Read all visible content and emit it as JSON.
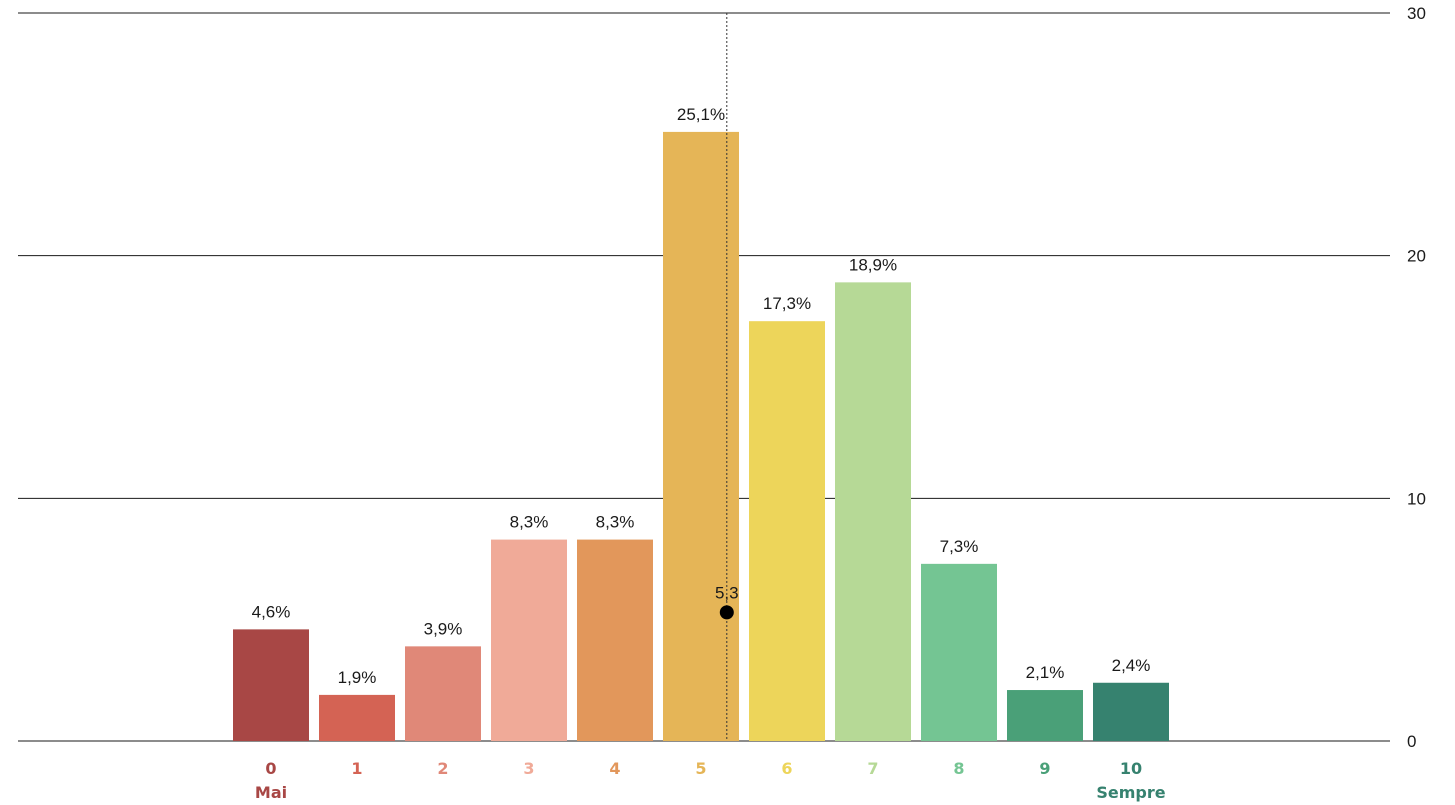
{
  "chart_data": {
    "type": "bar",
    "categories": [
      "0",
      "1",
      "2",
      "3",
      "4",
      "5",
      "6",
      "7",
      "8",
      "9",
      "10"
    ],
    "values": [
      4.6,
      1.9,
      3.9,
      8.3,
      8.3,
      25.1,
      17.3,
      18.9,
      7.3,
      2.1,
      2.4
    ],
    "value_labels": [
      "4,6%",
      "1,9%",
      "3,9%",
      "8,3%",
      "8,3%",
      "25,1%",
      "17,3%",
      "18,9%",
      "7,3%",
      "2,1%",
      "2,4%"
    ],
    "colors": [
      "#a84745",
      "#d46354",
      "#e08878",
      "#f0aa98",
      "#e2975b",
      "#e5b557",
      "#edd55a",
      "#b6d996",
      "#74c593",
      "#4aa078",
      "#36826f"
    ],
    "ylim": [
      0,
      30
    ],
    "yticks": [
      0,
      10,
      20,
      30
    ],
    "ytick_labels": [
      "0",
      "10",
      "20",
      "30"
    ],
    "y_axis_position": "right",
    "grid": true,
    "mean": {
      "value": 5.3,
      "label": "5,3"
    },
    "end_labels": {
      "low": "Mai",
      "high": "Sempre"
    }
  }
}
